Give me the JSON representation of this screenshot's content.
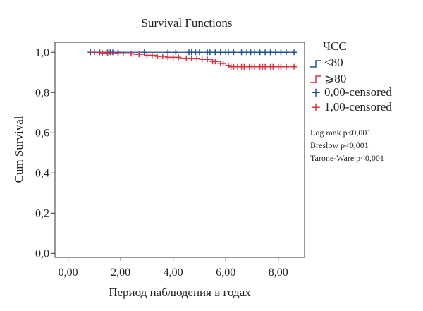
{
  "chart_data": {
    "type": "line",
    "title": "Survival Functions",
    "xlabel": "Период наблюдения в годах",
    "ylabel": "Cum Survival",
    "xlim": [
      -0.5,
      9.0
    ],
    "ylim": [
      -0.02,
      1.05
    ],
    "xticks": [
      0,
      2,
      4,
      6,
      8
    ],
    "xtick_labels": [
      "0,00",
      "2,00",
      "4,00",
      "6,00",
      "8,00"
    ],
    "yticks": [
      0.0,
      0.2,
      0.4,
      0.6,
      0.8,
      1.0
    ],
    "ytick_labels": [
      "0,0",
      "0,2",
      "0,4",
      "0,6",
      "0,8",
      "1,0"
    ],
    "grid": false,
    "legend": {
      "title": "ЧСС",
      "placement": "right",
      "entries": [
        "<80",
        "⩾80",
        "0,00-censored",
        "1,00-censored"
      ]
    },
    "stats_text": [
      "Log rank p<0,001",
      "Breslow p<0,001",
      "Tarone-Ware p<0,001"
    ],
    "series": [
      {
        "name": "<80",
        "color": "#1f4e9e",
        "steps": [
          [
            0.8,
            1.0
          ],
          [
            8.7,
            1.0
          ]
        ],
        "censored": [
          0.85,
          1.0,
          1.2,
          1.5,
          1.6,
          1.7,
          1.9,
          2.9,
          3.8,
          4.1,
          4.6,
          4.7,
          4.85,
          5.0,
          5.3,
          5.4,
          5.6,
          5.8,
          6.0,
          6.1,
          6.3,
          6.6,
          6.8,
          6.95,
          7.1,
          7.3,
          7.5,
          7.7,
          7.9,
          8.1,
          8.3,
          8.6
        ]
      },
      {
        "name": "⩾80",
        "color": "#e0303c",
        "steps": [
          [
            0.8,
            1.0
          ],
          [
            1.3,
            0.997
          ],
          [
            1.9,
            0.993
          ],
          [
            2.5,
            0.99
          ],
          [
            2.9,
            0.985
          ],
          [
            3.4,
            0.98
          ],
          [
            3.8,
            0.975
          ],
          [
            4.3,
            0.97
          ],
          [
            5.0,
            0.965
          ],
          [
            5.5,
            0.955
          ],
          [
            5.8,
            0.945
          ],
          [
            6.0,
            0.935
          ],
          [
            6.2,
            0.928
          ],
          [
            8.7,
            0.928
          ]
        ],
        "censored": [
          1.3,
          1.5,
          1.9,
          2.1,
          2.4,
          2.7,
          3.0,
          3.2,
          3.4,
          3.6,
          3.8,
          4.0,
          4.2,
          4.5,
          4.7,
          4.9,
          5.1,
          5.3,
          5.5,
          5.6,
          5.8,
          5.9,
          6.1,
          6.2,
          6.3,
          6.45,
          6.6,
          6.7,
          6.9,
          7.0,
          7.1,
          7.3,
          7.4,
          7.5,
          7.7,
          7.8,
          8.0,
          8.1,
          8.3,
          8.6
        ]
      }
    ]
  }
}
